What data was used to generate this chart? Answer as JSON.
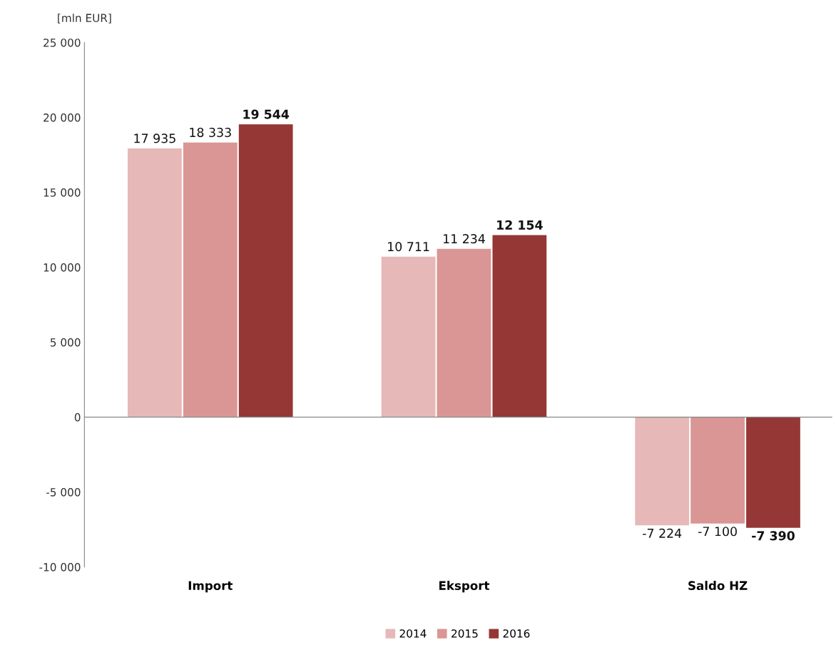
{
  "chart_data": {
    "type": "bar",
    "ylabel": "[mln EUR]",
    "categories": [
      "Import",
      "Eksport",
      "Saldo HZ"
    ],
    "series": [
      {
        "name": "2014",
        "color": "#e6b8b7",
        "values": [
          17935,
          10711,
          -7224
        ],
        "value_labels": [
          "17 935",
          "10 711",
          "-7 224"
        ]
      },
      {
        "name": "2015",
        "color": "#da9694",
        "values": [
          18333,
          11234,
          -7100
        ],
        "value_labels": [
          "18 333",
          "11 234",
          "-7 100"
        ]
      },
      {
        "name": "2016",
        "color": "#953735",
        "values": [
          19544,
          12154,
          -7390
        ],
        "value_labels": [
          "19 544",
          "12 154",
          "-7 390"
        ]
      }
    ],
    "ylim": [
      -10000,
      25000
    ],
    "yticks": [
      {
        "value": -10000,
        "label": "-10 000"
      },
      {
        "value": -5000,
        "label": "-5 000"
      },
      {
        "value": 0,
        "label": "0"
      },
      {
        "value": 5000,
        "label": "5 000"
      },
      {
        "value": 10000,
        "label": "10 000"
      },
      {
        "value": 15000,
        "label": "15 000"
      },
      {
        "value": 20000,
        "label": "20 000"
      },
      {
        "value": 25000,
        "label": "25 000"
      }
    ],
    "legend": "bottom"
  }
}
